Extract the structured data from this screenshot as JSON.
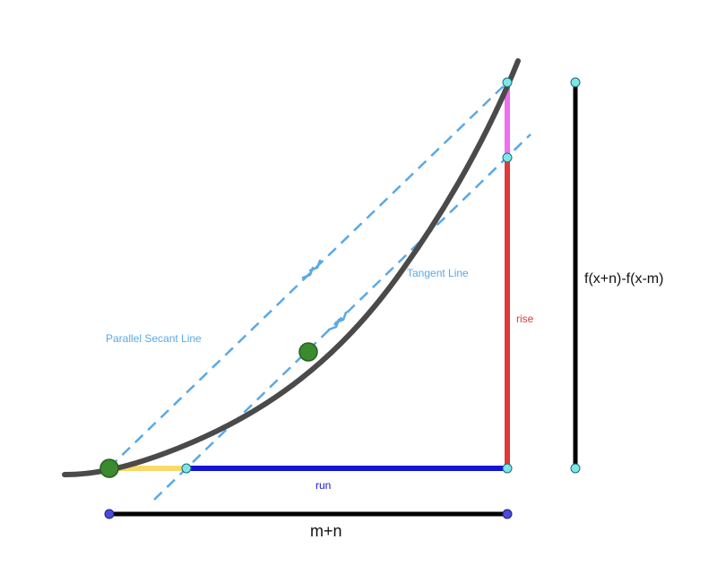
{
  "labels": {
    "parallel_secant": "Parallel Secant Line",
    "tangent": "Tangent Line",
    "rise": "rise",
    "run": "run",
    "diff_expr": "f(x+n)-f(x-m)",
    "width_expr": "m+n"
  },
  "colors": {
    "curve": "#4a4a4a",
    "dashed": "#5aa9e6",
    "run": "#1414d8",
    "rise": "#e03a36",
    "pink": "#ee6ff0",
    "yellow": "#f9d96a",
    "black_bar": "#000000",
    "point_green": "#3b8a2f",
    "point_cyan": "#7ee6e6",
    "point_blue": "#4a4adc",
    "secant_label": "#5aa9e6",
    "run_label": "#1414d8",
    "rise_label": "#e03a36"
  },
  "icons": {
    "parallel_marker": "double-chevron-icon"
  }
}
